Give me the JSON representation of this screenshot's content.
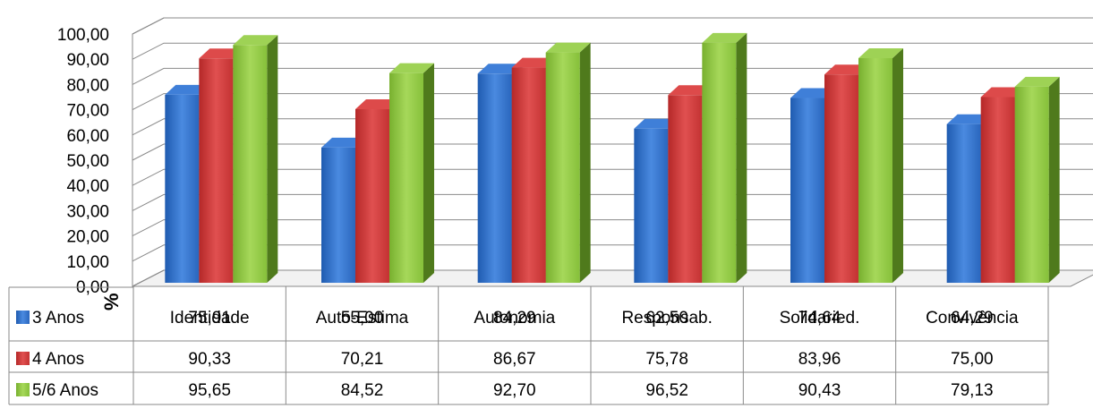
{
  "chart_data": {
    "type": "bar",
    "categories": [
      "Identidade",
      "Auto-Estima",
      "Autonomia",
      "Responsab.",
      "Solidaried.",
      "Convivência"
    ],
    "series": [
      {
        "name": "3 Anos",
        "values": [
          75.91,
          55.0,
          84.29,
          62.5,
          74.64,
          64.29
        ],
        "labels": [
          "75,91",
          "55,00",
          "84,29",
          "62,50",
          "74,64",
          "64,29"
        ],
        "color": "#2E6FC8"
      },
      {
        "name": "4 Anos",
        "values": [
          90.33,
          70.21,
          86.67,
          75.78,
          83.96,
          75.0
        ],
        "labels": [
          "90,33",
          "70,21",
          "86,67",
          "75,78",
          "83,96",
          "75,00"
        ],
        "color": "#D03A3A"
      },
      {
        "name": "5/6 Anos",
        "values": [
          95.65,
          84.52,
          92.7,
          96.52,
          90.43,
          79.13
        ],
        "labels": [
          "95,65",
          "84,52",
          "92,70",
          "96,52",
          "90,43",
          "79,13"
        ],
        "color": "#8CC63F"
      }
    ],
    "yticks": [
      "0,00",
      "10,00",
      "20,00",
      "30,00",
      "40,00",
      "50,00",
      "60,00",
      "70,00",
      "80,00",
      "90,00",
      "100,00"
    ],
    "ylabel": "%",
    "ylim": [
      0,
      100
    ],
    "grid": true,
    "legend": "data-table",
    "style": "3d-clustered-column"
  }
}
